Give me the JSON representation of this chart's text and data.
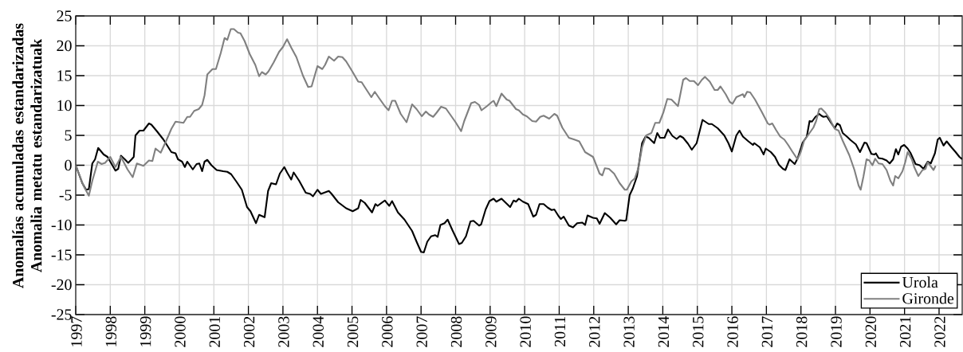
{
  "chart_data": {
    "type": "line",
    "ylabel": "Anomalías acumuladas estandarizadas\nAnomalia metatu estandarizatuak",
    "xlim": [
      1997,
      2022.67
    ],
    "ylim": [
      -25,
      25
    ],
    "xticks": [
      1997,
      1998,
      1999,
      2000,
      2001,
      2002,
      2003,
      2004,
      2005,
      2006,
      2007,
      2008,
      2009,
      2010,
      2011,
      2012,
      2013,
      2014,
      2015,
      2016,
      2017,
      2018,
      2019,
      2020,
      2021,
      2022
    ],
    "yticks": [
      -25,
      -20,
      -15,
      -10,
      -5,
      0,
      5,
      10,
      15,
      20,
      25
    ],
    "grid": true,
    "legend": "bottom right",
    "line_style": "solid",
    "series": [
      {
        "name": "Urola",
        "color": "#000000",
        "x": [
          1997.0,
          1997.19,
          1997.3,
          1997.38,
          1997.48,
          1997.56,
          1997.65,
          1997.81,
          1997.92,
          1998.15,
          1998.23,
          1998.31,
          1998.42,
          1998.52,
          1998.62,
          1998.68,
          1998.73,
          1998.85,
          1998.96,
          1999.12,
          1999.19,
          1999.35,
          1999.54,
          1999.66,
          1999.77,
          1999.89,
          1999.96,
          2000.08,
          2000.16,
          2000.23,
          2000.39,
          2000.5,
          2000.58,
          2000.66,
          2000.73,
          2000.81,
          2000.93,
          2001.08,
          2001.27,
          2001.39,
          2001.5,
          2001.66,
          2001.81,
          2001.96,
          2002.06,
          2002.22,
          2002.31,
          2002.47,
          2002.57,
          2002.66,
          2002.8,
          2002.91,
          2003.04,
          2003.12,
          2003.24,
          2003.31,
          2003.47,
          2003.66,
          2003.79,
          2003.87,
          2004.0,
          2004.1,
          2004.33,
          2004.41,
          2004.6,
          2004.83,
          2005.02,
          2005.18,
          2005.25,
          2005.37,
          2005.58,
          2005.68,
          2005.74,
          2005.95,
          2006.08,
          2006.16,
          2006.33,
          2006.52,
          2006.74,
          2006.87,
          2007.0,
          2007.08,
          2007.18,
          2007.29,
          2007.41,
          2007.48,
          2007.56,
          2007.68,
          2007.77,
          2007.91,
          2008.1,
          2008.18,
          2008.3,
          2008.43,
          2008.52,
          2008.68,
          2008.74,
          2008.87,
          2008.98,
          2009.1,
          2009.18,
          2009.33,
          2009.58,
          2009.68,
          2009.75,
          2009.83,
          2009.95,
          2010.1,
          2010.25,
          2010.33,
          2010.43,
          2010.55,
          2010.67,
          2010.78,
          2010.86,
          2010.98,
          2011.05,
          2011.13,
          2011.28,
          2011.4,
          2011.52,
          2011.67,
          2011.75,
          2011.82,
          2011.98,
          2012.09,
          2012.17,
          2012.32,
          2012.48,
          2012.65,
          2012.75,
          2012.9,
          2012.94,
          2013.04,
          2013.13,
          2013.25,
          2013.32,
          2013.4,
          2013.5,
          2013.59,
          2013.75,
          2013.84,
          2013.92,
          2014.05,
          2014.15,
          2014.28,
          2014.4,
          2014.5,
          2014.59,
          2014.73,
          2014.84,
          2014.98,
          2015.15,
          2015.33,
          2015.42,
          2015.59,
          2015.78,
          2015.9,
          2016.0,
          2016.13,
          2016.22,
          2016.32,
          2016.48,
          2016.61,
          2016.65,
          2016.81,
          2016.92,
          2016.98,
          2017.13,
          2017.25,
          2017.36,
          2017.48,
          2017.55,
          2017.67,
          2017.82,
          2017.9,
          2018.05,
          2018.17,
          2018.25,
          2018.32,
          2018.42,
          2018.53,
          2018.59,
          2018.65,
          2018.75,
          2018.86,
          2018.98,
          2019.05,
          2019.13,
          2019.21,
          2019.35,
          2019.44,
          2019.59,
          2019.71,
          2019.84,
          2019.9,
          2020.04,
          2020.13,
          2020.17,
          2020.25,
          2020.36,
          2020.48,
          2020.57,
          2020.67,
          2020.75,
          2020.82,
          2020.9,
          2020.99,
          2021.09,
          2021.17,
          2021.32,
          2021.44,
          2021.55,
          2021.67,
          2021.76,
          2021.88,
          2021.96,
          2022.02,
          2022.13,
          2022.22,
          2022.36,
          2022.48,
          2022.59,
          2022.67
        ],
        "values": [
          0,
          -3.0,
          -4.1,
          -4.0,
          0.3,
          1.0,
          2.9,
          1.8,
          1.4,
          -0.9,
          -0.6,
          1.6,
          1.0,
          0.4,
          1.0,
          1.4,
          5.0,
          5.8,
          5.8,
          7.0,
          6.8,
          5.7,
          4.3,
          3.2,
          2.2,
          2.0,
          1.0,
          0.6,
          -0.3,
          0.6,
          -0.7,
          0.2,
          0.3,
          -1.0,
          0.6,
          0.9,
          0.0,
          -0.8,
          -1.0,
          -1.1,
          -1.5,
          -2.8,
          -4.1,
          -7.0,
          -7.7,
          -9.7,
          -8.3,
          -8.7,
          -4.3,
          -3.0,
          -3.2,
          -1.4,
          -0.3,
          -1.2,
          -2.4,
          -1.2,
          -2.6,
          -4.6,
          -4.8,
          -5.2,
          -4.1,
          -4.8,
          -4.3,
          -4.8,
          -6.2,
          -7.2,
          -7.7,
          -7.2,
          -5.8,
          -6.3,
          -7.9,
          -6.5,
          -6.8,
          -5.9,
          -6.8,
          -6.0,
          -7.9,
          -9.1,
          -11.0,
          -12.8,
          -14.5,
          -14.6,
          -12.8,
          -11.9,
          -11.7,
          -12.0,
          -10.0,
          -9.7,
          -9.1,
          -10.9,
          -13.2,
          -13.0,
          -11.9,
          -9.4,
          -9.3,
          -10.1,
          -9.9,
          -7.4,
          -6.0,
          -5.6,
          -6.1,
          -5.6,
          -7.0,
          -5.9,
          -6.1,
          -5.6,
          -6.1,
          -6.5,
          -8.6,
          -8.3,
          -6.5,
          -6.5,
          -7.1,
          -7.5,
          -7.4,
          -8.5,
          -9.0,
          -8.6,
          -10.1,
          -10.4,
          -9.7,
          -9.6,
          -10.0,
          -8.4,
          -8.8,
          -8.9,
          -9.8,
          -8.0,
          -8.8,
          -9.9,
          -9.2,
          -9.3,
          -9.2,
          -5.0,
          -3.9,
          -1.9,
          0.6,
          3.7,
          4.8,
          4.6,
          3.7,
          5.4,
          4.6,
          4.6,
          6.0,
          4.9,
          4.4,
          4.9,
          4.6,
          3.6,
          2.6,
          3.7,
          7.6,
          6.9,
          6.9,
          6.2,
          5.0,
          3.7,
          2.3,
          5.0,
          5.8,
          4.8,
          4.0,
          3.4,
          3.7,
          3.0,
          1.8,
          2.8,
          2.2,
          1.4,
          0.1,
          -0.6,
          -0.8,
          1.0,
          0.2,
          1.1,
          3.8,
          4.8,
          7.4,
          7.3,
          8.1,
          8.6,
          8.3,
          8.1,
          8.2,
          7.2,
          6.2,
          7.0,
          6.7,
          5.4,
          4.7,
          4.2,
          3.5,
          2.2,
          3.8,
          3.7,
          1.9,
          1.8,
          2.0,
          1.2,
          1.1,
          0.8,
          0.3,
          1.0,
          2.7,
          1.8,
          3.1,
          3.4,
          2.8,
          2.1,
          0.2,
          0.0,
          -0.6,
          0.6,
          0.3,
          2.0,
          4.3,
          4.6,
          3.3,
          4.0,
          3.0,
          2.2,
          1.4,
          1.0
        ]
      },
      {
        "name": "Gironde",
        "color": "#808080",
        "x": [
          1997.0,
          1997.23,
          1997.38,
          1997.48,
          1997.64,
          1997.75,
          1997.85,
          1998.0,
          1998.15,
          1998.31,
          1998.5,
          1998.65,
          1998.77,
          1998.96,
          1999.12,
          1999.22,
          1999.31,
          1999.46,
          1999.62,
          1999.77,
          1999.89,
          2000.12,
          2000.23,
          2000.31,
          2000.43,
          2000.56,
          2000.66,
          2000.73,
          2000.81,
          2000.96,
          2001.06,
          2001.2,
          2001.31,
          2001.39,
          2001.49,
          2001.58,
          2001.7,
          2001.77,
          2001.89,
          2002.04,
          2002.2,
          2002.31,
          2002.39,
          2002.5,
          2002.58,
          2002.73,
          2002.89,
          2003.0,
          2003.12,
          2003.24,
          2003.39,
          2003.58,
          2003.73,
          2003.83,
          2003.91,
          2004.0,
          2004.14,
          2004.22,
          2004.33,
          2004.48,
          2004.6,
          2004.72,
          2004.83,
          2005.02,
          2005.18,
          2005.28,
          2005.38,
          2005.56,
          2005.66,
          2005.79,
          2005.95,
          2006.06,
          2006.16,
          2006.25,
          2006.41,
          2006.58,
          2006.74,
          2006.87,
          2007.02,
          2007.14,
          2007.23,
          2007.35,
          2007.45,
          2007.58,
          2007.72,
          2007.83,
          2008.0,
          2008.16,
          2008.25,
          2008.33,
          2008.45,
          2008.56,
          2008.68,
          2008.75,
          2008.91,
          2009.05,
          2009.1,
          2009.18,
          2009.33,
          2009.48,
          2009.56,
          2009.75,
          2009.83,
          2009.95,
          2010.06,
          2010.22,
          2010.33,
          2010.45,
          2010.55,
          2010.71,
          2010.86,
          2010.94,
          2011.09,
          2011.28,
          2011.44,
          2011.58,
          2011.75,
          2011.98,
          2012.17,
          2012.25,
          2012.32,
          2012.44,
          2012.59,
          2012.75,
          2012.9,
          2012.96,
          2013.09,
          2013.19,
          2013.3,
          2013.4,
          2013.52,
          2013.67,
          2013.78,
          2013.9,
          2014.02,
          2014.13,
          2014.25,
          2014.44,
          2014.59,
          2014.67,
          2014.78,
          2014.9,
          2015.02,
          2015.13,
          2015.22,
          2015.36,
          2015.5,
          2015.59,
          2015.67,
          2015.82,
          2015.94,
          2016.02,
          2016.13,
          2016.32,
          2016.36,
          2016.44,
          2016.53,
          2016.67,
          2016.86,
          2017.04,
          2017.09,
          2017.17,
          2017.28,
          2017.4,
          2017.52,
          2017.63,
          2017.75,
          2017.9,
          2018.0,
          2018.09,
          2018.25,
          2018.36,
          2018.44,
          2018.53,
          2018.59,
          2018.71,
          2018.82,
          2018.98,
          2019.09,
          2019.21,
          2019.4,
          2019.55,
          2019.67,
          2019.73,
          2019.81,
          2019.9,
          2019.98,
          2020.07,
          2020.15,
          2020.25,
          2020.36,
          2020.48,
          2020.59,
          2020.67,
          2020.73,
          2020.82,
          2020.94,
          2021.02,
          2021.09,
          2021.21,
          2021.28,
          2021.4,
          2021.52,
          2021.61,
          2021.67,
          2021.75,
          2021.84,
          2021.9
        ],
        "values": [
          0,
          -3.5,
          -5.1,
          -2.6,
          0.6,
          0.2,
          0.4,
          1.4,
          -0.3,
          1.4,
          -0.7,
          -2.0,
          0.3,
          -0.1,
          0.8,
          0.7,
          2.8,
          2.1,
          4.1,
          6.1,
          7.3,
          7.1,
          8.1,
          8.1,
          9.1,
          9.4,
          10.1,
          11.7,
          15.2,
          16.1,
          16.1,
          18.8,
          21.3,
          21.0,
          22.8,
          22.8,
          22.2,
          22.1,
          20.8,
          18.6,
          16.8,
          14.9,
          15.6,
          15.2,
          15.7,
          17.2,
          19.0,
          19.8,
          21.1,
          19.7,
          18.1,
          15.0,
          13.1,
          13.2,
          14.8,
          16.6,
          16.1,
          16.8,
          18.2,
          17.5,
          18.2,
          18.1,
          17.4,
          15.6,
          14.0,
          13.9,
          13.0,
          11.4,
          12.3,
          11.2,
          9.9,
          9.2,
          10.8,
          10.8,
          8.6,
          7.2,
          10.2,
          9.4,
          8.2,
          9.0,
          8.5,
          8.1,
          8.8,
          9.8,
          9.5,
          8.6,
          7.2,
          5.7,
          7.4,
          8.6,
          10.4,
          10.6,
          10.1,
          9.2,
          9.9,
          10.6,
          10.8,
          9.9,
          12.0,
          11.0,
          10.8,
          9.4,
          9.2,
          8.5,
          8.2,
          7.4,
          7.3,
          8.1,
          8.3,
          7.8,
          8.6,
          8.3,
          6.3,
          4.6,
          4.3,
          4.0,
          2.2,
          1.4,
          -1.4,
          -1.7,
          -0.5,
          -0.6,
          -1.4,
          -3.0,
          -4.1,
          -4.1,
          -2.7,
          -2.2,
          -0.3,
          3.0,
          5.0,
          5.4,
          7.1,
          7.1,
          8.9,
          11.1,
          11.0,
          9.9,
          14.3,
          14.6,
          14.1,
          14.1,
          13.4,
          14.3,
          14.8,
          14.0,
          12.6,
          12.6,
          13.2,
          11.9,
          10.6,
          10.3,
          11.4,
          11.9,
          11.4,
          12.3,
          12.2,
          11.0,
          9.0,
          7.0,
          6.8,
          7.0,
          5.9,
          4.8,
          4.3,
          3.4,
          2.3,
          1.0,
          2.3,
          4.1,
          5.4,
          6.3,
          7.4,
          9.4,
          9.5,
          8.8,
          7.9,
          6.1,
          5.8,
          4.1,
          1.7,
          -0.8,
          -3.4,
          -4.1,
          -1.9,
          1.0,
          0.8,
          0.0,
          1.1,
          0.3,
          0.2,
          -0.8,
          -2.6,
          -3.4,
          -1.8,
          -2.2,
          -1.0,
          0.5,
          2.2,
          1.0,
          -0.3,
          -1.8,
          -0.8,
          -0.6,
          0.5,
          -0.1,
          -0.8,
          -0.1
        ]
      }
    ]
  }
}
